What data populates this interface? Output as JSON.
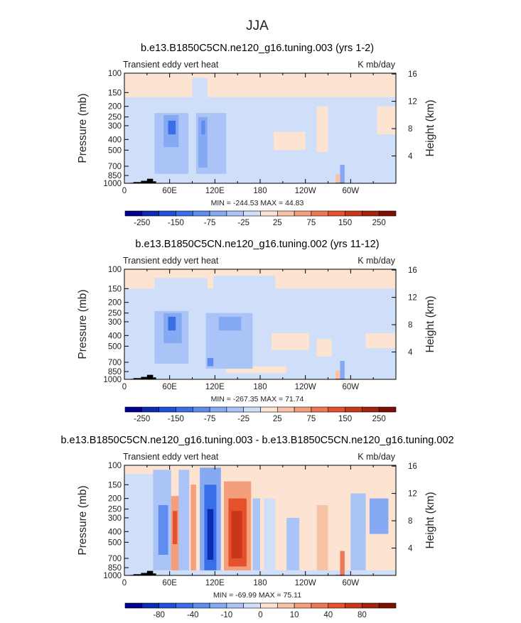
{
  "figure": {
    "season": "JJA"
  },
  "chart_data": [
    {
      "type": "heatmap",
      "title": "b.e13.B1850C5CN.ne120_g16.tuning.003 (yrs 1-2)",
      "left_label": "Transient eddy vert heat",
      "units": "K mb/day",
      "ylabel": "Pressure (mb)",
      "ylabel_right": "Height (km)",
      "x_ticks": [
        "0",
        "60E",
        "120E",
        "180",
        "120W",
        "60W"
      ],
      "x_values": [
        0,
        60,
        120,
        180,
        240,
        300
      ],
      "xlim": [
        0,
        360
      ],
      "y_ticks": [
        "100",
        "150",
        "200",
        "250",
        "300",
        "400",
        "500",
        "700",
        "850",
        "1000"
      ],
      "y_values": [
        100,
        150,
        200,
        250,
        300,
        400,
        500,
        700,
        850,
        1000
      ],
      "ylim": [
        1000,
        100
      ],
      "height_ticks": [
        "4",
        "8",
        "12",
        "16"
      ],
      "height_values": [
        4,
        8,
        12,
        16
      ],
      "stats": "MIN = -244.53   MAX =  44.83",
      "colorbar_labels": [
        "-250",
        "-150",
        "-75",
        "-25",
        "25",
        "75",
        "150",
        "250"
      ],
      "colorbar_colors": [
        "#00008c",
        "#0b2bb0",
        "#1e50d8",
        "#3a6ee8",
        "#5f8cef",
        "#86a9f3",
        "#aac4f7",
        "#cfdef9",
        "#fde3d2",
        "#f8c2a6",
        "#f49e7c",
        "#ef7753",
        "#e5502d",
        "#c83718",
        "#a4230c",
        "#7e1003"
      ],
      "features": [
        {
          "region": "background",
          "level": "weak positive",
          "value": 10
        },
        {
          "region": "troposphere midlatitudes",
          "level": "weak negative",
          "value": -15
        },
        {
          "region": "60E-70E 250-400 mb",
          "level": "strong negative",
          "value": -200
        },
        {
          "region": "105E-120E 250-500 mb",
          "level": "moderate negative",
          "value": -120
        }
      ]
    },
    {
      "type": "heatmap",
      "title": "b.e13.B1850C5CN.ne120_g16.tuning.002 (yrs 11-12)",
      "left_label": "Transient eddy vert heat",
      "units": "K mb/day",
      "ylabel": "Pressure (mb)",
      "ylabel_right": "Height (km)",
      "x_ticks": [
        "0",
        "60E",
        "120E",
        "180",
        "120W",
        "60W"
      ],
      "x_values": [
        0,
        60,
        120,
        180,
        240,
        300
      ],
      "xlim": [
        0,
        360
      ],
      "y_ticks": [
        "100",
        "150",
        "200",
        "250",
        "300",
        "400",
        "500",
        "700",
        "850",
        "1000"
      ],
      "y_values": [
        100,
        150,
        200,
        250,
        300,
        400,
        500,
        700,
        850,
        1000
      ],
      "ylim": [
        1000,
        100
      ],
      "height_ticks": [
        "4",
        "8",
        "12",
        "16"
      ],
      "height_values": [
        4,
        8,
        12,
        16
      ],
      "stats": "MIN = -267.35   MAX =  71.74",
      "colorbar_labels": [
        "-250",
        "-150",
        "-75",
        "-25",
        "25",
        "75",
        "150",
        "250"
      ],
      "colorbar_colors": [
        "#00008c",
        "#0b2bb0",
        "#1e50d8",
        "#3a6ee8",
        "#5f8cef",
        "#86a9f3",
        "#aac4f7",
        "#cfdef9",
        "#fde3d2",
        "#f8c2a6",
        "#f49e7c",
        "#ef7753",
        "#e5502d",
        "#c83718",
        "#a4230c",
        "#7e1003"
      ],
      "features": [
        {
          "region": "background",
          "level": "weak positive",
          "value": 10
        },
        {
          "region": "troposphere midlatitudes",
          "level": "weak negative",
          "value": -15
        },
        {
          "region": "60E-70E 250-400 mb",
          "level": "strong negative",
          "value": -220
        },
        {
          "region": "110E-170E 250-500 mb",
          "level": "moderate negative",
          "value": -100
        }
      ]
    },
    {
      "type": "heatmap",
      "title": "b.e13.B1850C5CN.ne120_g16.tuning.003 - b.e13.B1850C5CN.ne120_g16.tuning.002",
      "left_label": "Transient eddy vert heat",
      "units": "K mb/day",
      "ylabel": "Pressure (mb)",
      "ylabel_right": "Height (km)",
      "x_ticks": [
        "0",
        "60E",
        "120E",
        "180",
        "120W",
        "60W"
      ],
      "x_values": [
        0,
        60,
        120,
        180,
        240,
        300
      ],
      "xlim": [
        0,
        360
      ],
      "y_ticks": [
        "100",
        "150",
        "200",
        "250",
        "300",
        "400",
        "500",
        "700",
        "850",
        "1000"
      ],
      "y_values": [
        100,
        150,
        200,
        250,
        300,
        400,
        500,
        700,
        850,
        1000
      ],
      "ylim": [
        1000,
        100
      ],
      "height_ticks": [
        "4",
        "8",
        "12",
        "16"
      ],
      "height_values": [
        4,
        8,
        12,
        16
      ],
      "stats": "MIN = -69.99   MAX =  75.11",
      "colorbar_labels": [
        "-80",
        "-40",
        "-10",
        "0",
        "10",
        "40",
        "80"
      ],
      "colorbar_colors": [
        "#00008c",
        "#0b2bb0",
        "#1e50d8",
        "#3a6ee8",
        "#5f8cef",
        "#86a9f3",
        "#aac4f7",
        "#cfdef9",
        "#fde3d2",
        "#f8c2a6",
        "#f49e7c",
        "#ef7753",
        "#e5502d",
        "#c83718",
        "#a4230c",
        "#7e1003"
      ],
      "features": [
        {
          "region": "background",
          "level": "weak positive",
          "value": 5
        },
        {
          "region": "45E-55E",
          "level": "negative",
          "value": -40
        },
        {
          "region": "65E-70E",
          "level": "positive",
          "value": 40
        },
        {
          "region": "105E-125E",
          "level": "strong negative",
          "value": -65
        },
        {
          "region": "135E-160E",
          "level": "strong positive",
          "value": 70
        },
        {
          "region": "50W-30W 200-400 mb",
          "level": "negative",
          "value": -30
        }
      ]
    }
  ]
}
